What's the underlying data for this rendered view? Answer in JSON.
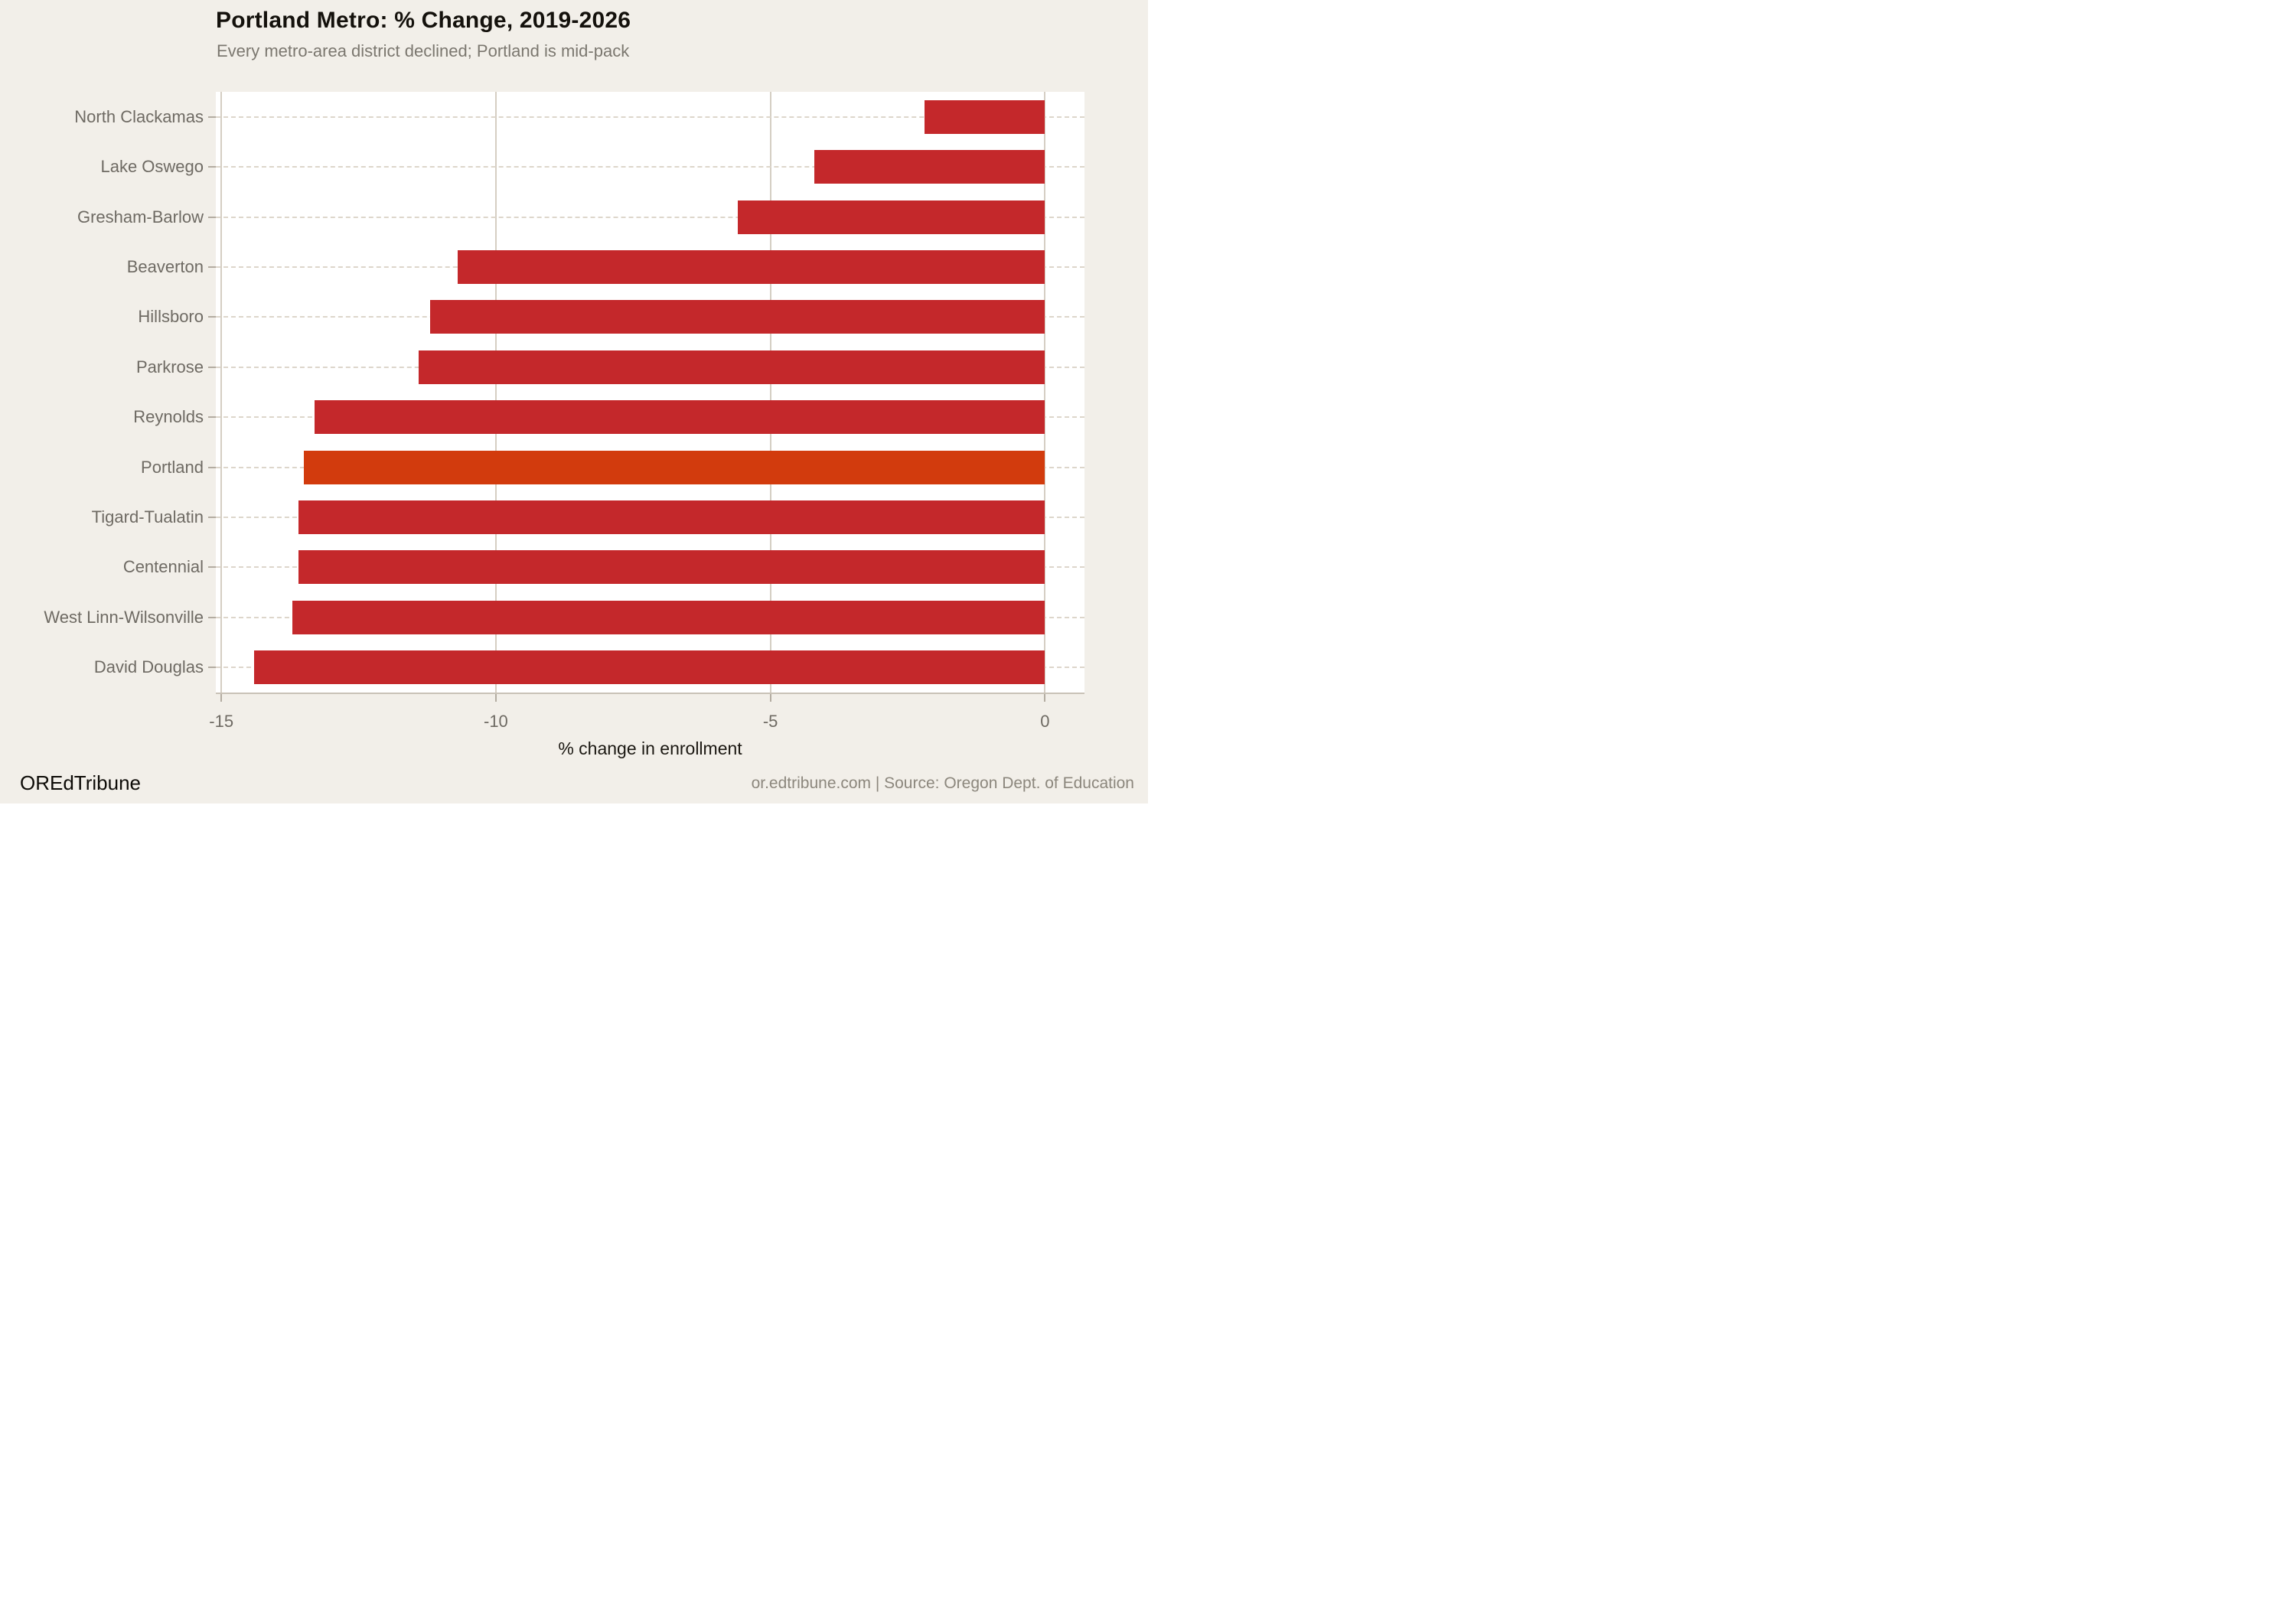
{
  "chart_data": {
    "type": "bar",
    "orientation": "horizontal",
    "title": "Portland Metro: % Change, 2019-2026",
    "subtitle": "Every metro-area district declined; Portland is mid-pack",
    "xlabel": "% change in enrollment",
    "categories": [
      "North Clackamas",
      "Lake Oswego",
      "Gresham-Barlow",
      "Beaverton",
      "Hillsboro",
      "Parkrose",
      "Reynolds",
      "Portland",
      "Tigard-Tualatin",
      "Centennial",
      "West Linn-Wilsonville",
      "David Douglas"
    ],
    "values": [
      -2.2,
      -4.2,
      -5.6,
      -10.7,
      -11.2,
      -11.4,
      -13.3,
      -13.5,
      -13.6,
      -13.6,
      -13.7,
      -14.4
    ],
    "bar_anchor": 0,
    "highlight_category": "Portland",
    "xlim": [
      -15.1,
      0.72
    ],
    "xticks": [
      -15,
      -10,
      -5,
      0
    ],
    "xtick_labels": [
      "-15",
      "-10",
      "-5",
      "0"
    ],
    "legend": null,
    "grid": "vertical gridlines at xticks, dashed horizontal leader line per row",
    "colors": {
      "bar": "#c4282b",
      "highlight": "#d23b0d",
      "panel": "#ffffff",
      "background": "#f2efe9",
      "gridline": "#d5cec3",
      "rowline": "#ddd6cb",
      "axis_line": "#c9c2b7",
      "tick_mark": "#b3aca1"
    }
  },
  "footer": {
    "brand": "OREdTribune",
    "attribution": "or.edtribune.com | Source: Oregon Dept. of Education"
  }
}
